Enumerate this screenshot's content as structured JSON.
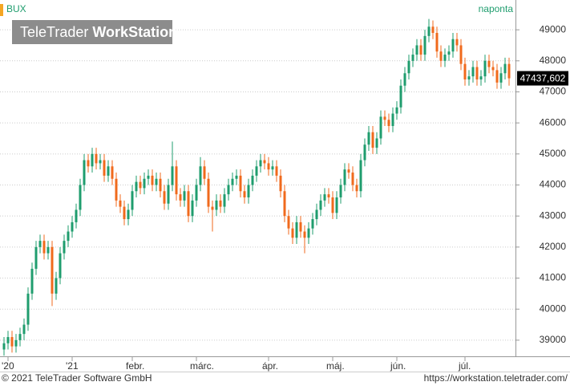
{
  "chart_data": {
    "type": "candlestick",
    "title": "BUX",
    "interval": "naponta",
    "categories": [
      null,
      "'20",
      null,
      null,
      null,
      null,
      null,
      null,
      null,
      null,
      null,
      null,
      null,
      null,
      null,
      null,
      null,
      "'21",
      null,
      null,
      null,
      null,
      null,
      null,
      null,
      null,
      null,
      null,
      null,
      null,
      null,
      null,
      "febr.",
      null,
      null,
      null,
      null,
      null,
      null,
      null,
      null,
      null,
      null,
      null,
      null,
      null,
      null,
      null,
      "márc.",
      null,
      null,
      null,
      null,
      null,
      null,
      null,
      null,
      null,
      null,
      null,
      null,
      null,
      null,
      null,
      null,
      null,
      "ápr.",
      null,
      null,
      null,
      null,
      null,
      null,
      null,
      null,
      null,
      null,
      null,
      null,
      null,
      null,
      null,
      "máj.",
      null,
      null,
      null,
      null,
      null,
      null,
      null,
      null,
      null,
      null,
      null,
      null,
      null,
      null,
      null,
      "jún.",
      null,
      null,
      null,
      null,
      null,
      null,
      null,
      null,
      null,
      null,
      null,
      null,
      null,
      null,
      null,
      null,
      "júl.",
      null,
      null,
      null,
      null,
      null,
      null,
      null,
      null,
      null,
      null,
      null
    ],
    "open": [
      38700,
      38900,
      39100,
      38800,
      39000,
      39200,
      39500,
      40500,
      41300,
      42000,
      42200,
      41800,
      42000,
      40500,
      41000,
      41800,
      42200,
      42500,
      42800,
      43200,
      44000,
      44800,
      44600,
      45000,
      44700,
      44800,
      44300,
      44600,
      44200,
      43500,
      43300,
      42900,
      43200,
      43800,
      44100,
      43900,
      44200,
      44300,
      44000,
      44200,
      43800,
      43400,
      44000,
      44600,
      43700,
      43500,
      43800,
      43000,
      43500,
      44000,
      44600,
      44200,
      43300,
      43200,
      43500,
      43300,
      43700,
      44000,
      44200,
      44300,
      43800,
      43600,
      44000,
      44300,
      44600,
      44800,
      44700,
      44500,
      44600,
      44300,
      43800,
      43000,
      42600,
      42300,
      42800,
      42500,
      42300,
      42600,
      42900,
      43200,
      43500,
      43700,
      43600,
      43100,
      43600,
      44000,
      44500,
      44400,
      44000,
      43800,
      44800,
      45300,
      45700,
      45200,
      45500,
      46200,
      46100,
      45900,
      46300,
      46500,
      47200,
      47600,
      48000,
      48200,
      48500,
      48200,
      48800,
      49100,
      48900,
      48300,
      48000,
      48200,
      48300,
      48700,
      48500,
      47900,
      47400,
      47500,
      47800,
      47400,
      47500,
      48000,
      47800,
      47700,
      47300,
      47600,
      47900
    ],
    "high": [
      39100,
      39300,
      39300,
      39200,
      39400,
      39700,
      40700,
      41500,
      42200,
      42400,
      42400,
      42200,
      42200,
      41200,
      42000,
      42400,
      42700,
      43000,
      43400,
      44200,
      45000,
      45000,
      45200,
      45200,
      45000,
      45000,
      44800,
      44800,
      44400,
      43700,
      43500,
      43400,
      44000,
      44300,
      44300,
      44400,
      44500,
      44500,
      44400,
      44400,
      44000,
      44200,
      45400,
      44800,
      43900,
      44000,
      44000,
      43700,
      44200,
      44900,
      44800,
      44400,
      43500,
      43700,
      43700,
      43900,
      44200,
      44400,
      44500,
      44500,
      44000,
      44200,
      44500,
      44800,
      45000,
      45000,
      44900,
      44800,
      44800,
      44500,
      44000,
      43200,
      42800,
      43000,
      43000,
      42700,
      42800,
      43100,
      43400,
      43700,
      43900,
      43900,
      43800,
      43800,
      44200,
      44700,
      44700,
      44600,
      44200,
      45000,
      45500,
      45900,
      45900,
      45700,
      46400,
      46400,
      46300,
      46500,
      46700,
      47400,
      47800,
      48200,
      48400,
      48700,
      48700,
      49000,
      49350,
      49300,
      49100,
      48500,
      48400,
      48500,
      48900,
      48900,
      48700,
      48100,
      47700,
      48000,
      48000,
      47700,
      48200,
      48200,
      48000,
      47900,
      47800,
      48100,
      48100
    ],
    "low": [
      38500,
      38700,
      38600,
      38600,
      38800,
      39000,
      39300,
      40300,
      41100,
      41800,
      41600,
      41600,
      40100,
      40300,
      40800,
      41600,
      42000,
      42300,
      42600,
      43000,
      43800,
      44400,
      44400,
      44500,
      44500,
      44100,
      44100,
      44000,
      43300,
      43100,
      42700,
      42700,
      43000,
      43600,
      43700,
      43700,
      44000,
      43800,
      43800,
      43600,
      43200,
      43200,
      43800,
      43500,
      43300,
      43300,
      42800,
      42800,
      43300,
      43800,
      44000,
      43100,
      42500,
      43000,
      43100,
      43100,
      43500,
      43800,
      44000,
      43600,
      43400,
      43400,
      43800,
      44100,
      44400,
      44500,
      44300,
      44300,
      44100,
      43600,
      42800,
      42400,
      42100,
      42100,
      42300,
      41800,
      42100,
      42400,
      42700,
      43000,
      43300,
      43400,
      42900,
      42900,
      43400,
      43800,
      44200,
      43800,
      43600,
      43600,
      44600,
      45100,
      45000,
      45000,
      45300,
      45900,
      45700,
      45700,
      46100,
      46300,
      47000,
      47400,
      47800,
      48000,
      48000,
      48000,
      48600,
      48700,
      48100,
      47800,
      47800,
      48000,
      48100,
      48300,
      47700,
      47200,
      47200,
      47300,
      47200,
      47200,
      47300,
      47600,
      47500,
      47100,
      47100,
      47400,
      47200
    ],
    "close": [
      38900,
      39100,
      38800,
      39000,
      39200,
      39500,
      40500,
      41300,
      42000,
      42200,
      41800,
      42000,
      40500,
      41000,
      41800,
      42200,
      42500,
      42800,
      43200,
      44000,
      44800,
      44600,
      45000,
      44700,
      44800,
      44300,
      44600,
      44200,
      43500,
      43300,
      42900,
      43200,
      43800,
      44100,
      43900,
      44200,
      44300,
      44000,
      44200,
      43800,
      43400,
      44000,
      44600,
      43700,
      43500,
      43800,
      43000,
      43500,
      44000,
      44600,
      44200,
      43300,
      43200,
      43500,
      43300,
      43700,
      44000,
      44200,
      44300,
      43800,
      43600,
      44000,
      44300,
      44600,
      44800,
      44700,
      44500,
      44600,
      44300,
      43800,
      43000,
      42600,
      42300,
      42800,
      42500,
      42300,
      42600,
      42900,
      43200,
      43500,
      43700,
      43600,
      43100,
      43600,
      44000,
      44500,
      44400,
      44000,
      43800,
      44800,
      45300,
      45700,
      45200,
      45500,
      46200,
      46100,
      45900,
      46300,
      46500,
      47200,
      47600,
      48000,
      48200,
      48500,
      48200,
      48800,
      49100,
      48900,
      48300,
      48000,
      48200,
      48300,
      48700,
      48500,
      47900,
      47400,
      47500,
      47800,
      47400,
      47500,
      48000,
      47800,
      47700,
      47300,
      47600,
      47900,
      47437.602
    ],
    "last_price": {
      "value": 47437.602,
      "label": "47437,602"
    },
    "up_color": "#1f9d6e",
    "down_color": "#f06a1c",
    "ylim": [
      38480,
      49960
    ],
    "yticks": [
      39000,
      40000,
      41000,
      42000,
      43000,
      44000,
      45000,
      46000,
      47000,
      48000,
      49000
    ],
    "grid": true
  },
  "watermark": {
    "brand": "TeleTrader",
    "product": "WorkStation"
  },
  "footer": {
    "copyright": "© 2021 TeleTrader Software GmbH",
    "url": "https://workstation.teletrader.com/"
  }
}
